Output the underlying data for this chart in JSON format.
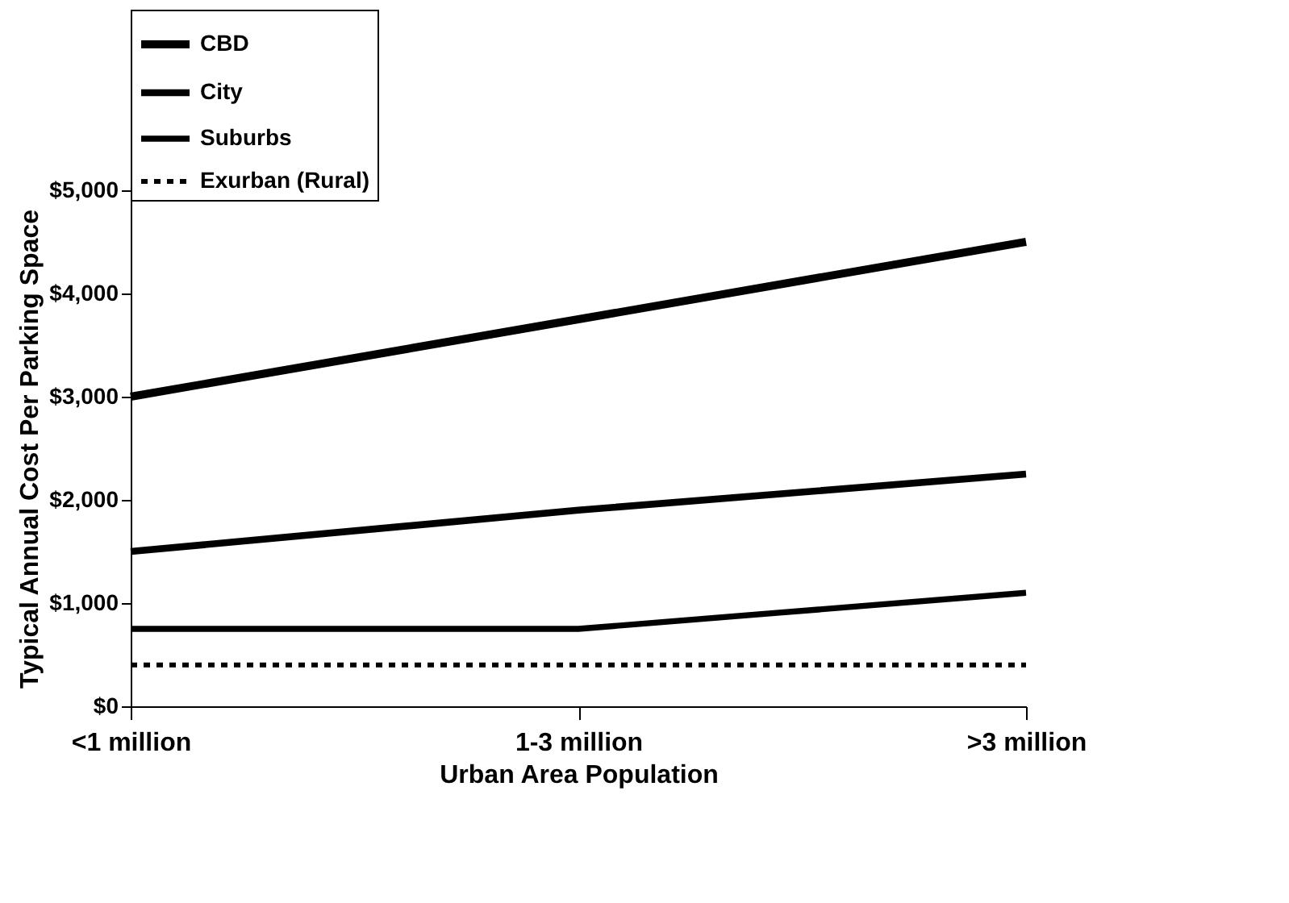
{
  "chart_data": {
    "type": "line",
    "categories": [
      "<1 million",
      "1-3 million",
      ">3 million"
    ],
    "series": [
      {
        "name": "CBD",
        "color": "#000000",
        "values": [
          3000,
          3750,
          4500
        ],
        "line_style": "solid"
      },
      {
        "name": "City",
        "color": "#000000",
        "values": [
          1500,
          1900,
          2250
        ],
        "line_style": "solid"
      },
      {
        "name": "Suburbs",
        "color": "#000000",
        "values": [
          750,
          750,
          1100
        ],
        "line_style": "solid"
      },
      {
        "name": "Exurban (Rural)",
        "color": "#000000",
        "values": [
          400,
          400,
          400
        ],
        "line_style": "dashed"
      }
    ],
    "ylim": [
      0,
      5000
    ],
    "yticks": [
      {
        "value": 0,
        "label": "$0"
      },
      {
        "value": 1000,
        "label": "$1,000"
      },
      {
        "value": 2000,
        "label": "$2,000"
      },
      {
        "value": 3000,
        "label": "$3,000"
      },
      {
        "value": 4000,
        "label": "$4,000"
      },
      {
        "value": 5000,
        "label": "$5,000"
      }
    ],
    "xlabel": "Urban Area Population",
    "ylabel": "Typical Annual Cost Per Parking Space",
    "grid": false,
    "legend": "top",
    "marker": "none"
  }
}
